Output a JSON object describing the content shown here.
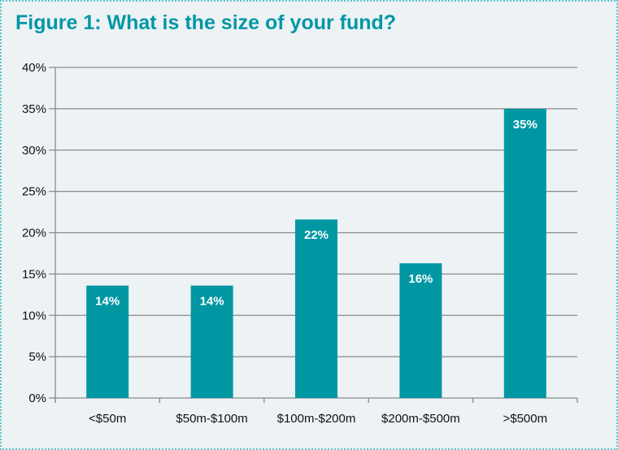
{
  "chart_data": {
    "type": "bar",
    "title": "Figure 1: What is the size of your fund?",
    "categories": [
      "<$50m",
      "$50m-$100m",
      "$100m-$200m",
      "$200m-$500m",
      ">$500m"
    ],
    "values": [
      13.6,
      13.6,
      21.6,
      16.3,
      35
    ],
    "data_labels": [
      "14%",
      "14%",
      "22%",
      "16%",
      "35%"
    ],
    "xlabel": "",
    "ylabel": "",
    "ylim": [
      0,
      40
    ],
    "yticks": [
      "0%",
      "5%",
      "10%",
      "15%",
      "20%",
      "25%",
      "30%",
      "35%",
      "40%"
    ],
    "grid": true,
    "colors": {
      "bar": "#0097a3",
      "title": "#0097a5",
      "grid": "#8a8a8a"
    }
  }
}
